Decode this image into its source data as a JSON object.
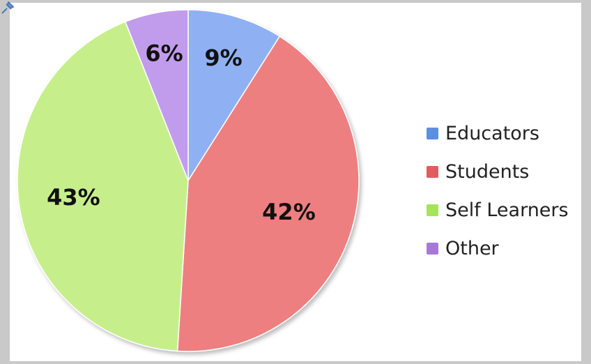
{
  "chart_data": {
    "type": "pie",
    "categories": [
      "Educators",
      "Students",
      "Self Learners",
      "Other"
    ],
    "values": [
      9,
      42,
      43,
      6
    ],
    "value_labels": [
      "9%",
      "42%",
      "43%",
      "6%"
    ],
    "colors": [
      "#8fb1f3",
      "#ee7f80",
      "#c6ef8c",
      "#c29cec"
    ],
    "legend_position": "right",
    "start": "top",
    "direction": "clockwise"
  },
  "legend": {
    "items": [
      {
        "label": "Educators",
        "color": "#5b8fe0"
      },
      {
        "label": "Students",
        "color": "#e15c60"
      },
      {
        "label": "Self Learners",
        "color": "#a6e35d"
      },
      {
        "label": "Other",
        "color": "#a878d6"
      }
    ]
  },
  "icons": {
    "corner": "pin-icon"
  }
}
